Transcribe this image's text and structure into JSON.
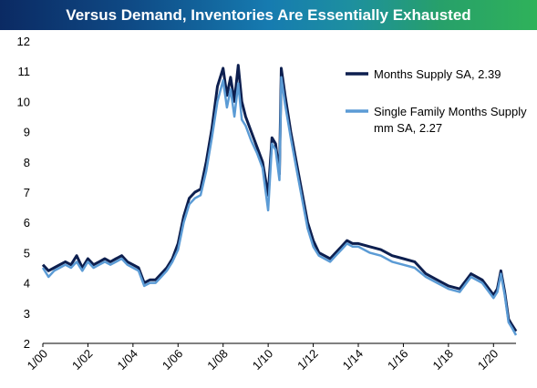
{
  "chart_data": {
    "type": "line",
    "title": "Versus Demand, Inventories Are Essentially Exhausted",
    "xlabel": "",
    "ylabel": "",
    "ylim": [
      2,
      12
    ],
    "yticks": [
      2,
      3,
      4,
      5,
      6,
      7,
      8,
      9,
      10,
      11,
      12
    ],
    "x_tick_labels": [
      "1/00",
      "1/02",
      "1/04",
      "1/06",
      "1/08",
      "1/10",
      "1/12",
      "1/14",
      "1/16",
      "1/18",
      "1/20"
    ],
    "x_tick_years": [
      2000,
      2002,
      2004,
      2006,
      2008,
      2010,
      2012,
      2014,
      2016,
      2018,
      2020
    ],
    "xlim": [
      2000,
      2021
    ],
    "grid": false,
    "legend_position": "top-right",
    "series": [
      {
        "name": "Months Supply SA, 2.39",
        "color": "#0d1f4f",
        "x": [
          2000.0,
          2000.25,
          2000.5,
          2000.75,
          2001.0,
          2001.25,
          2001.5,
          2001.75,
          2002.0,
          2002.25,
          2002.5,
          2002.75,
          2003.0,
          2003.25,
          2003.5,
          2003.75,
          2004.0,
          2004.25,
          2004.5,
          2004.75,
          2005.0,
          2005.25,
          2005.5,
          2005.75,
          2006.0,
          2006.25,
          2006.5,
          2006.75,
          2007.0,
          2007.25,
          2007.5,
          2007.75,
          2008.0,
          2008.17,
          2008.33,
          2008.5,
          2008.67,
          2008.83,
          2009.0,
          2009.25,
          2009.5,
          2009.75,
          2010.0,
          2010.17,
          2010.33,
          2010.5,
          2010.58,
          2010.75,
          2011.0,
          2011.25,
          2011.5,
          2011.75,
          2012.0,
          2012.25,
          2012.5,
          2012.75,
          2013.0,
          2013.25,
          2013.5,
          2013.75,
          2014.0,
          2014.5,
          2015.0,
          2015.5,
          2016.0,
          2016.5,
          2017.0,
          2017.5,
          2018.0,
          2018.5,
          2019.0,
          2019.5,
          2020.0,
          2020.17,
          2020.33,
          2020.5,
          2020.67,
          2020.83,
          2021.0
        ],
        "y": [
          4.6,
          4.4,
          4.5,
          4.6,
          4.7,
          4.6,
          4.9,
          4.5,
          4.8,
          4.6,
          4.7,
          4.8,
          4.7,
          4.8,
          4.9,
          4.7,
          4.6,
          4.5,
          4.0,
          4.1,
          4.1,
          4.3,
          4.5,
          4.8,
          5.3,
          6.2,
          6.8,
          7.0,
          7.1,
          8.0,
          9.1,
          10.5,
          11.1,
          10.2,
          10.8,
          10.0,
          11.2,
          10.0,
          9.5,
          9.0,
          8.5,
          8.0,
          6.9,
          8.8,
          8.6,
          7.6,
          11.1,
          10.2,
          9.0,
          8.0,
          7.0,
          6.0,
          5.4,
          5.0,
          4.9,
          4.8,
          5.0,
          5.2,
          5.4,
          5.3,
          5.3,
          5.2,
          5.1,
          4.9,
          4.8,
          4.7,
          4.3,
          4.1,
          3.9,
          3.8,
          4.3,
          4.1,
          3.6,
          3.8,
          4.4,
          3.7,
          2.8,
          2.6,
          2.4
        ]
      },
      {
        "name": "Single Family Months Supply mm SA, 2.27",
        "color": "#5b9bd5",
        "x": [
          2000.0,
          2000.25,
          2000.5,
          2000.75,
          2001.0,
          2001.25,
          2001.5,
          2001.75,
          2002.0,
          2002.25,
          2002.5,
          2002.75,
          2003.0,
          2003.25,
          2003.5,
          2003.75,
          2004.0,
          2004.25,
          2004.5,
          2004.75,
          2005.0,
          2005.25,
          2005.5,
          2005.75,
          2006.0,
          2006.25,
          2006.5,
          2006.75,
          2007.0,
          2007.25,
          2007.5,
          2007.75,
          2008.0,
          2008.17,
          2008.33,
          2008.5,
          2008.67,
          2008.83,
          2009.0,
          2009.25,
          2009.5,
          2009.75,
          2010.0,
          2010.17,
          2010.33,
          2010.5,
          2010.58,
          2010.75,
          2011.0,
          2011.25,
          2011.5,
          2011.75,
          2012.0,
          2012.25,
          2012.5,
          2012.75,
          2013.0,
          2013.25,
          2013.5,
          2013.75,
          2014.0,
          2014.5,
          2015.0,
          2015.5,
          2016.0,
          2016.5,
          2017.0,
          2017.5,
          2018.0,
          2018.5,
          2019.0,
          2019.5,
          2020.0,
          2020.17,
          2020.33,
          2020.5,
          2020.67,
          2020.83,
          2021.0
        ],
        "y": [
          4.5,
          4.2,
          4.4,
          4.5,
          4.6,
          4.5,
          4.7,
          4.4,
          4.7,
          4.5,
          4.6,
          4.7,
          4.6,
          4.7,
          4.8,
          4.6,
          4.5,
          4.4,
          3.9,
          4.0,
          4.0,
          4.2,
          4.4,
          4.7,
          5.1,
          6.0,
          6.6,
          6.8,
          6.9,
          7.7,
          8.8,
          10.0,
          10.7,
          9.8,
          10.4,
          9.5,
          10.6,
          9.4,
          9.2,
          8.7,
          8.3,
          7.8,
          6.4,
          8.6,
          8.4,
          7.4,
          10.8,
          9.9,
          8.8,
          7.8,
          6.8,
          5.8,
          5.2,
          4.9,
          4.8,
          4.7,
          4.9,
          5.1,
          5.3,
          5.2,
          5.2,
          5.0,
          4.9,
          4.7,
          4.6,
          4.5,
          4.2,
          4.0,
          3.8,
          3.7,
          4.2,
          4.0,
          3.5,
          3.7,
          4.3,
          3.6,
          2.7,
          2.5,
          2.27
        ]
      }
    ]
  }
}
